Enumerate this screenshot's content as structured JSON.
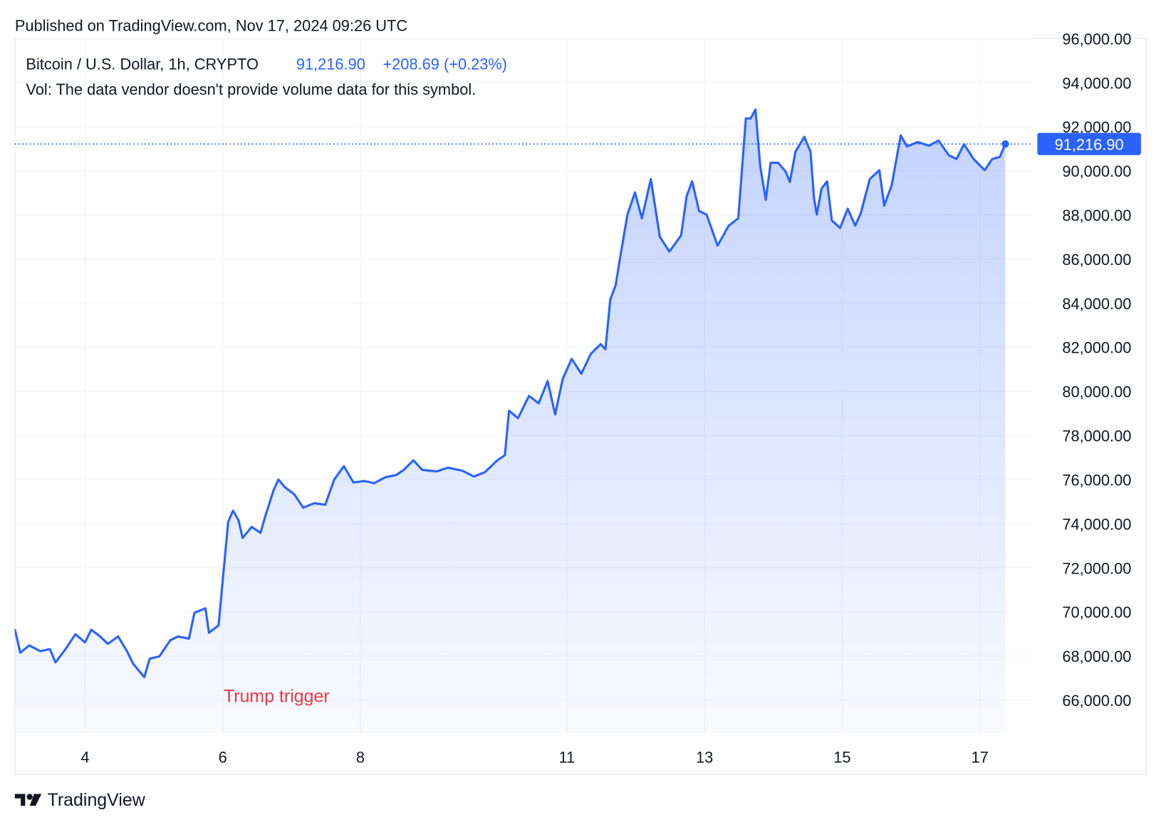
{
  "chart_data": {
    "type": "line",
    "published": "Published on TradingView.com, Nov 17, 2024 09:26 UTC",
    "change": "+208.69 (+0.23%)",
    "volume_note": "Vol: The data vendor doesn't provide volume data for this symbol.",
    "annotation": "Trump trigger",
    "brand": "TradingView",
    "last_price": {
      "value": 91216.9,
      "label": "91,216.90"
    },
    "x": [
      2.98,
      3.06,
      3.19,
      3.35,
      3.49,
      3.57,
      3.71,
      3.86,
      4.0,
      4.09,
      4.22,
      4.33,
      4.48,
      4.61,
      4.7,
      4.86,
      4.94,
      5.08,
      5.24,
      5.35,
      5.51,
      5.59,
      5.67,
      5.75,
      5.8,
      5.94,
      5.99,
      6.08,
      6.15,
      6.23,
      6.29,
      6.42,
      6.55,
      6.61,
      6.74,
      6.81,
      6.9,
      7.04,
      7.17,
      7.33,
      7.49,
      7.62,
      7.76,
      7.9,
      8.06,
      8.2,
      8.36,
      8.52,
      8.63,
      8.77,
      8.9,
      9.11,
      9.27,
      9.48,
      9.65,
      9.81,
      9.99,
      10.1,
      10.16,
      10.29,
      10.45,
      10.59,
      10.72,
      10.83,
      10.94,
      11.07,
      11.21,
      11.35,
      11.49,
      11.56,
      11.63,
      11.71,
      11.77,
      11.88,
      11.99,
      12.09,
      12.22,
      12.35,
      12.49,
      12.66,
      12.74,
      12.82,
      12.92,
      13.03,
      13.19,
      13.35,
      13.49,
      13.6,
      13.67,
      13.74,
      13.81,
      13.89,
      13.96,
      14.07,
      14.18,
      14.24,
      14.32,
      14.45,
      14.54,
      14.59,
      14.63,
      14.7,
      14.78,
      14.85,
      14.97,
      15.08,
      15.19,
      15.27,
      15.4,
      15.54,
      15.61,
      15.72,
      15.85,
      15.94,
      16.1,
      16.26,
      16.4,
      16.55,
      16.66,
      16.77,
      16.91,
      17.07,
      17.18,
      17.29,
      17.37
    ],
    "series": [
      {
        "name": "Bitcoin / U.S. Dollar, 1h, CRYPTO",
        "color": "#2962ff",
        "values": [
          69222,
          68148,
          68483,
          68215,
          68316,
          67711,
          68282,
          68987,
          68618,
          69188,
          68886,
          68551,
          68886,
          68215,
          67644,
          67040,
          67879,
          67980,
          68718,
          68886,
          68785,
          69960,
          70061,
          70162,
          69054,
          69390,
          71068,
          74088,
          74591,
          74155,
          73350,
          73853,
          73584,
          74256,
          75531,
          76001,
          75666,
          75330,
          74725,
          74927,
          74860,
          76001,
          76605,
          75867,
          75934,
          75833,
          76102,
          76202,
          76437,
          76873,
          76437,
          76370,
          76538,
          76404,
          76135,
          76337,
          76873,
          77108,
          79122,
          78786,
          79793,
          79458,
          80464,
          78954,
          80565,
          81471,
          80800,
          81706,
          82142,
          81907,
          84156,
          84827,
          86001,
          88015,
          89022,
          87847,
          89626,
          87009,
          86337,
          87075,
          88854,
          89525,
          88183,
          88015,
          86606,
          87512,
          87847,
          92378,
          92378,
          92781,
          90196,
          88686,
          90364,
          90364,
          89962,
          89492,
          90867,
          91539,
          90867,
          88753,
          88015,
          89190,
          89525,
          87747,
          87411,
          88284,
          87512,
          88082,
          89626,
          90028,
          88418,
          89358,
          91606,
          91103,
          91304,
          91137,
          91371,
          90700,
          90532,
          91203,
          90532,
          90028,
          90532,
          90633,
          91216.9
        ]
      }
    ],
    "xlim": [
      2.98,
      17.77
    ],
    "xticks": [
      4,
      6,
      8,
      11,
      13,
      15,
      17
    ],
    "ylim": [
      64500,
      96000
    ],
    "yticks": [
      {
        "value": 66000,
        "label": "66,000.00"
      },
      {
        "value": 68000,
        "label": "68,000.00"
      },
      {
        "value": 70000,
        "label": "70,000.00"
      },
      {
        "value": 72000,
        "label": "72,000.00"
      },
      {
        "value": 74000,
        "label": "74,000.00"
      },
      {
        "value": 76000,
        "label": "76,000.00"
      },
      {
        "value": 78000,
        "label": "78,000.00"
      },
      {
        "value": 80000,
        "label": "80,000.00"
      },
      {
        "value": 82000,
        "label": "82,000.00"
      },
      {
        "value": 84000,
        "label": "84,000.00"
      },
      {
        "value": 86000,
        "label": "86,000.00"
      },
      {
        "value": 88000,
        "label": "88,000.00"
      },
      {
        "value": 90000,
        "label": "90,000.00"
      },
      {
        "value": 92000,
        "label": "92,000.00"
      },
      {
        "value": 94000,
        "label": "94,000.00"
      },
      {
        "value": 96000,
        "label": "96,000.00"
      }
    ],
    "grid": true
  }
}
